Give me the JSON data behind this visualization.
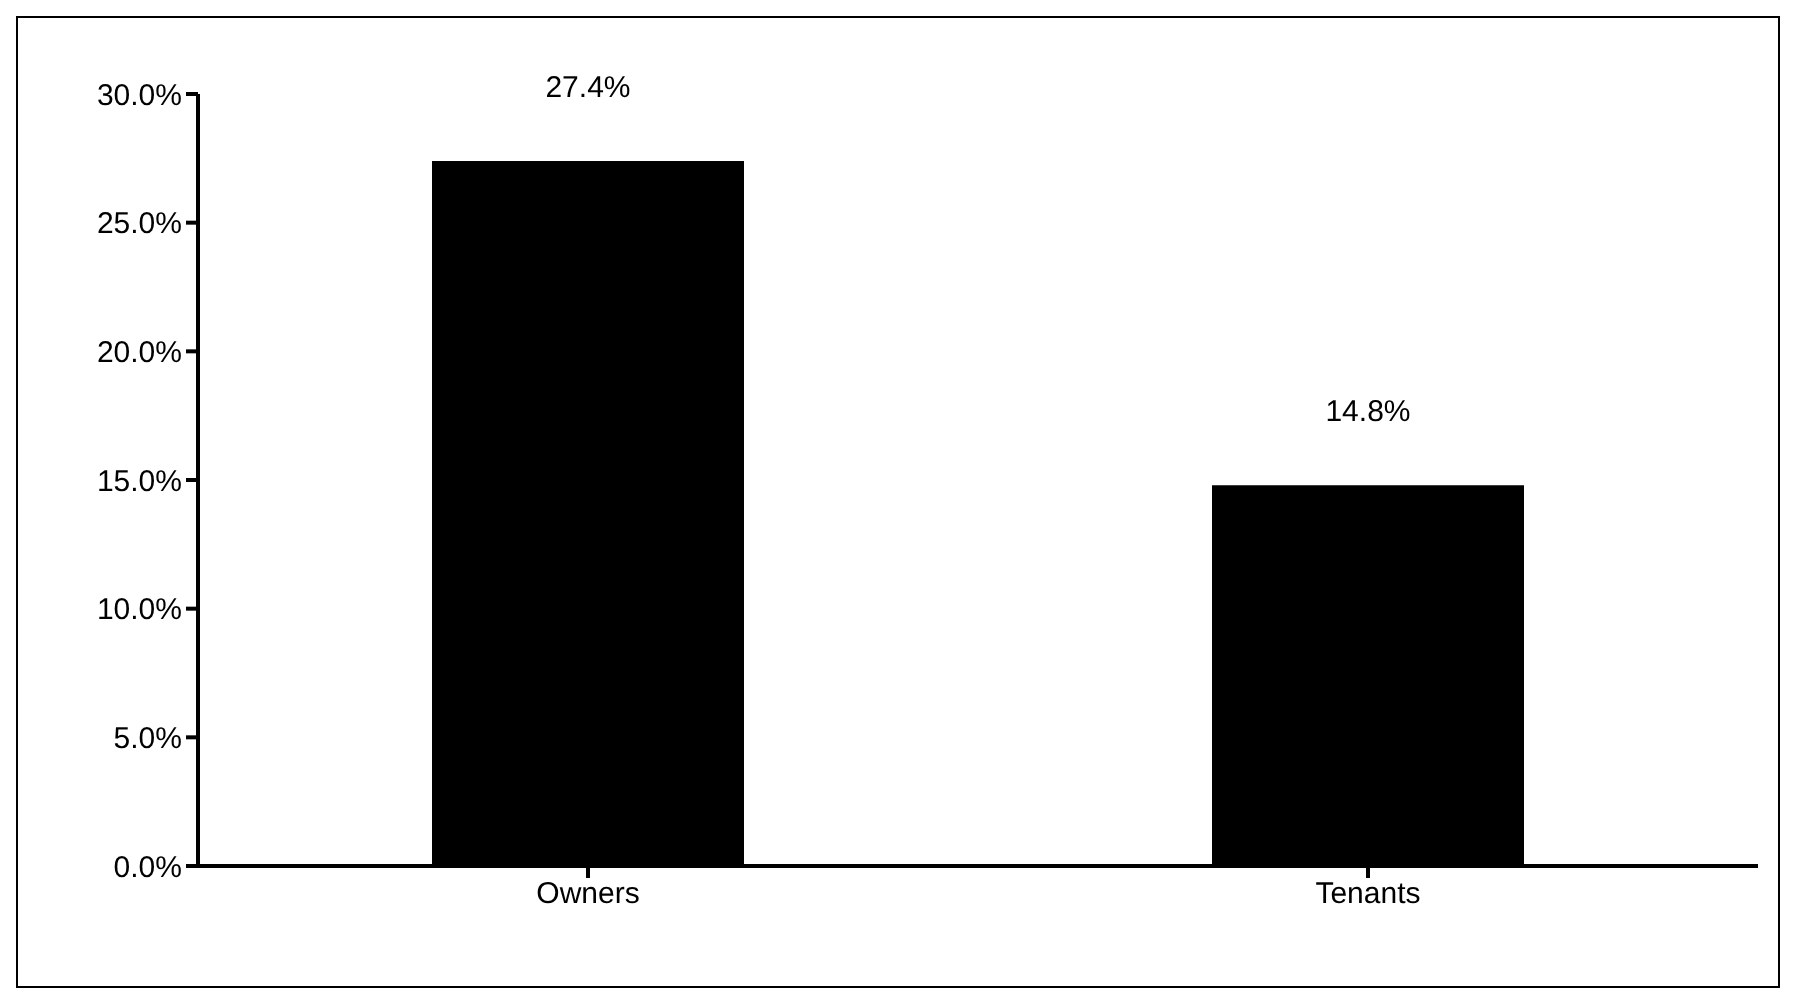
{
  "chart_data": {
    "type": "bar",
    "categories": [
      "Owners",
      "Tenants"
    ],
    "values": [
      27.4,
      14.8
    ],
    "color": "#000000",
    "value_labels": [
      "27.4%",
      "14.8%"
    ],
    "ylim": [
      0,
      30
    ],
    "yticks": [
      {
        "value": 0,
        "label": "0.0%"
      },
      {
        "value": 5,
        "label": "5.0%"
      },
      {
        "value": 10,
        "label": "10.0%"
      },
      {
        "value": 15,
        "label": "15.0%"
      },
      {
        "value": 20,
        "label": "20.0%"
      },
      {
        "value": 25,
        "label": "25.0%"
      },
      {
        "value": 30,
        "label": "30.0%"
      }
    ],
    "grid": false,
    "legend": false
  }
}
